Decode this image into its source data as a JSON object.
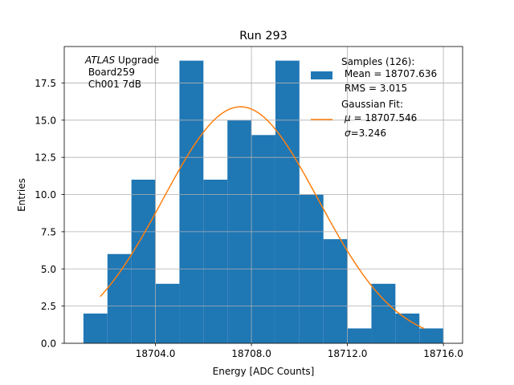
{
  "chart_data": {
    "type": "bar",
    "title": "Run 293",
    "xlabel": "Energy [ADC Counts]",
    "ylabel": "Entries",
    "xlim": [
      18700.2,
      18716.8
    ],
    "ylim": [
      0,
      19.95
    ],
    "grid": true,
    "x_ticks": [
      {
        "value": 18704,
        "label": "18704.0"
      },
      {
        "value": 18708,
        "label": "18708.0"
      },
      {
        "value": 18712,
        "label": "18712.0"
      },
      {
        "value": 18716,
        "label": "18716.0"
      }
    ],
    "y_ticks": [
      {
        "value": 0,
        "label": "0.0"
      },
      {
        "value": 2.5,
        "label": "2.5"
      },
      {
        "value": 5,
        "label": "5.0"
      },
      {
        "value": 7.5,
        "label": "7.5"
      },
      {
        "value": 10,
        "label": "10.0"
      },
      {
        "value": 12.5,
        "label": "12.5"
      },
      {
        "value": 15,
        "label": "15.0"
      },
      {
        "value": 17.5,
        "label": "17.5"
      }
    ],
    "histogram": {
      "bin_edges": [
        18701,
        18702,
        18703,
        18704,
        18705,
        18706,
        18707,
        18708,
        18709,
        18710,
        18711,
        18712,
        18713,
        18714,
        18715,
        18716
      ],
      "counts": [
        2,
        6,
        11,
        4,
        19,
        11,
        15,
        14,
        19,
        10,
        7,
        1,
        4,
        2,
        1
      ],
      "color": "#1f77b4"
    },
    "fit": {
      "type": "gaussian",
      "mu": 18707.546,
      "sigma": 3.246,
      "amplitude": 15.9,
      "x_range": [
        18701.7,
        18715.2
      ],
      "color": "#ff7f0e"
    },
    "legend": {
      "position": "top-right",
      "samples_lines": [
        "Samples (126):",
        " Mean = 18707.636",
        " RMS = 3.015"
      ],
      "fit_title": "Gaussian Fit:",
      "fit_mu_symbol": "μ",
      "fit_mu_value": " = 18707.546",
      "fit_sigma_symbol": "σ",
      "fit_sigma_value": "=3.246"
    },
    "annotation": {
      "atlas": "ATLAS",
      "upgrade": " Upgrade",
      "line2": " Board259",
      "line3": " Ch001 7dB"
    }
  }
}
